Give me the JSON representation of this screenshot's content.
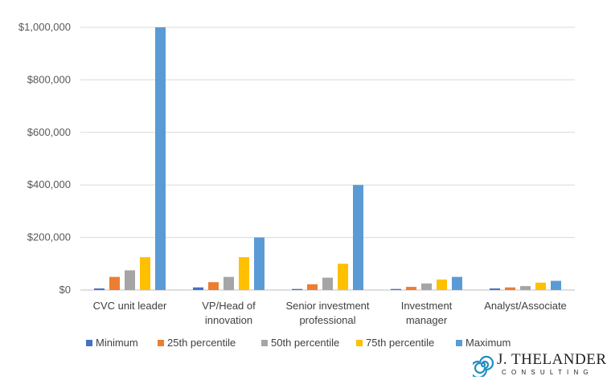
{
  "chart_data": {
    "type": "bar",
    "categories": [
      [
        "CVC unit leader"
      ],
      [
        "VP/Head of",
        "innovation"
      ],
      [
        "Senior investment",
        "professional"
      ],
      [
        "Investment",
        "manager"
      ],
      [
        "Analyst/Associate"
      ]
    ],
    "series": [
      {
        "name": "Minimum",
        "color": "#4472C4",
        "values": [
          6000,
          10000,
          4000,
          4000,
          6000
        ]
      },
      {
        "name": "25th percentile",
        "color": "#ED7D31",
        "values": [
          50000,
          30000,
          22000,
          12000,
          10000
        ]
      },
      {
        "name": "50th percentile",
        "color": "#A5A5A5",
        "values": [
          75000,
          50000,
          47000,
          25000,
          15000
        ]
      },
      {
        "name": "75th percentile",
        "color": "#FFC000",
        "values": [
          125000,
          125000,
          100000,
          40000,
          28000
        ]
      },
      {
        "name": "Maximum",
        "color": "#5B9BD5",
        "values": [
          1000000,
          200000,
          400000,
          50000,
          35000
        ]
      }
    ],
    "ylim": [
      0,
      1000000
    ],
    "yticks": [
      0,
      200000,
      400000,
      600000,
      800000,
      1000000
    ],
    "ytick_labels": [
      "$0",
      "$200,000",
      "$400,000",
      "$600,000",
      "$800,000",
      "$1,000,000"
    ],
    "grid": true,
    "legend_position": "bottom",
    "title": "",
    "xlabel": "",
    "ylabel": ""
  },
  "logo": {
    "name": "J. THELANDER",
    "sub": "CONSULTING"
  }
}
